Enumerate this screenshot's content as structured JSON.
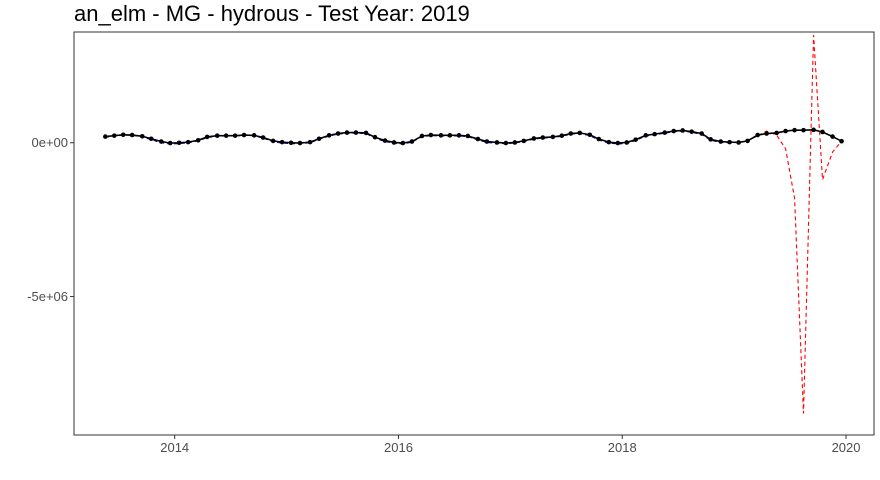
{
  "chart_data": {
    "type": "line",
    "title": "an_elm - MG - hydrous - Test Year: 2019",
    "xlabel": "",
    "ylabel": "",
    "xlim": [
      2013.1,
      2020.25
    ],
    "ylim": [
      -9500000,
      3600000
    ],
    "x_ticks": [
      {
        "value": 2014,
        "label": "2014"
      },
      {
        "value": 2016,
        "label": "2016"
      },
      {
        "value": 2018,
        "label": "2018"
      },
      {
        "value": 2020,
        "label": "2020"
      }
    ],
    "y_ticks": [
      {
        "value": 0,
        "label": "0e+00"
      },
      {
        "value": -5000000,
        "label": "-5e+06"
      }
    ],
    "grid": false,
    "legend": "none",
    "series": [
      {
        "role": "actual",
        "style": "solid line with points",
        "color": "#000000",
        "x": [
          2013.38,
          2013.46,
          2013.54,
          2013.62,
          2013.71,
          2013.79,
          2013.88,
          2013.96,
          2014.04,
          2014.12,
          2014.21,
          2014.29,
          2014.38,
          2014.46,
          2014.54,
          2014.62,
          2014.71,
          2014.79,
          2014.88,
          2014.96,
          2015.04,
          2015.12,
          2015.21,
          2015.29,
          2015.38,
          2015.46,
          2015.54,
          2015.62,
          2015.71,
          2015.79,
          2015.88,
          2015.96,
          2016.04,
          2016.12,
          2016.21,
          2016.29,
          2016.38,
          2016.46,
          2016.54,
          2016.62,
          2016.71,
          2016.79,
          2016.88,
          2016.96,
          2017.04,
          2017.12,
          2017.21,
          2017.29,
          2017.38,
          2017.46,
          2017.54,
          2017.62,
          2017.71,
          2017.79,
          2017.88,
          2017.96,
          2018.04,
          2018.12,
          2018.21,
          2018.29,
          2018.38,
          2018.46,
          2018.54,
          2018.62,
          2018.71,
          2018.79,
          2018.88,
          2018.96,
          2019.04,
          2019.12,
          2019.21,
          2019.29,
          2019.38,
          2019.46,
          2019.54,
          2019.62,
          2019.71,
          2019.79,
          2019.88,
          2019.96
        ],
        "y": [
          200000,
          230000,
          260000,
          250000,
          210000,
          130000,
          40000,
          -10000,
          0,
          20000,
          80000,
          190000,
          230000,
          230000,
          230000,
          250000,
          240000,
          170000,
          60000,
          20000,
          0,
          -10000,
          20000,
          130000,
          240000,
          300000,
          330000,
          330000,
          320000,
          180000,
          70000,
          10000,
          -10000,
          40000,
          220000,
          250000,
          240000,
          240000,
          240000,
          220000,
          120000,
          40000,
          10000,
          -10000,
          10000,
          60000,
          140000,
          170000,
          190000,
          230000,
          300000,
          320000,
          260000,
          120000,
          20000,
          -10000,
          10000,
          100000,
          240000,
          280000,
          330000,
          380000,
          400000,
          360000,
          300000,
          110000,
          40000,
          20000,
          10000,
          60000,
          250000,
          300000,
          320000,
          380000,
          410000,
          410000,
          420000,
          350000,
          200000,
          50000
        ]
      },
      {
        "role": "fitted",
        "style": "dashed line",
        "color": "#0000cc",
        "x": [
          2013.38,
          2013.46,
          2013.54,
          2013.62,
          2013.71,
          2013.79,
          2013.88,
          2013.96,
          2014.04,
          2014.12,
          2014.21,
          2014.29,
          2014.38,
          2014.46,
          2014.54,
          2014.62,
          2014.71,
          2014.79,
          2014.88,
          2014.96,
          2015.04,
          2015.12,
          2015.21,
          2015.29,
          2015.38,
          2015.46,
          2015.54,
          2015.62,
          2015.71,
          2015.79,
          2015.88,
          2015.96,
          2016.04,
          2016.12,
          2016.21,
          2016.29,
          2016.38,
          2016.46,
          2016.54,
          2016.62,
          2016.71,
          2016.79,
          2016.88,
          2016.96,
          2017.04,
          2017.12,
          2017.21,
          2017.29,
          2017.38,
          2017.46,
          2017.54,
          2017.62,
          2017.71,
          2017.79,
          2017.88,
          2017.96,
          2018.04,
          2018.12,
          2018.21,
          2018.29,
          2018.38,
          2018.46,
          2018.54,
          2018.62,
          2018.71,
          2018.79,
          2018.88,
          2018.96
        ],
        "y": [
          180000,
          220000,
          250000,
          240000,
          190000,
          100000,
          0,
          -40000,
          -30000,
          0,
          60000,
          170000,
          210000,
          220000,
          220000,
          240000,
          230000,
          150000,
          30000,
          -10000,
          -30000,
          -30000,
          0,
          110000,
          220000,
          280000,
          310000,
          310000,
          300000,
          150000,
          40000,
          -20000,
          -40000,
          20000,
          200000,
          230000,
          220000,
          220000,
          220000,
          200000,
          90000,
          10000,
          -20000,
          -30000,
          -10000,
          40000,
          120000,
          150000,
          170000,
          210000,
          280000,
          300000,
          230000,
          90000,
          -10000,
          -40000,
          -20000,
          70000,
          220000,
          260000,
          310000,
          360000,
          380000,
          340000,
          270000,
          80000,
          10000,
          0
        ]
      },
      {
        "role": "forecast",
        "style": "dashed line",
        "color": "#ff0000",
        "x": [
          2019.04,
          2019.12,
          2019.21,
          2019.29,
          2019.38,
          2019.46,
          2019.54,
          2019.62,
          2019.71,
          2019.79,
          2019.88,
          2019.96
        ],
        "y": [
          10000,
          80000,
          220000,
          380000,
          250000,
          -200000,
          -1800000,
          -8800000,
          3500000,
          -1200000,
          -300000,
          50000
        ]
      }
    ]
  }
}
